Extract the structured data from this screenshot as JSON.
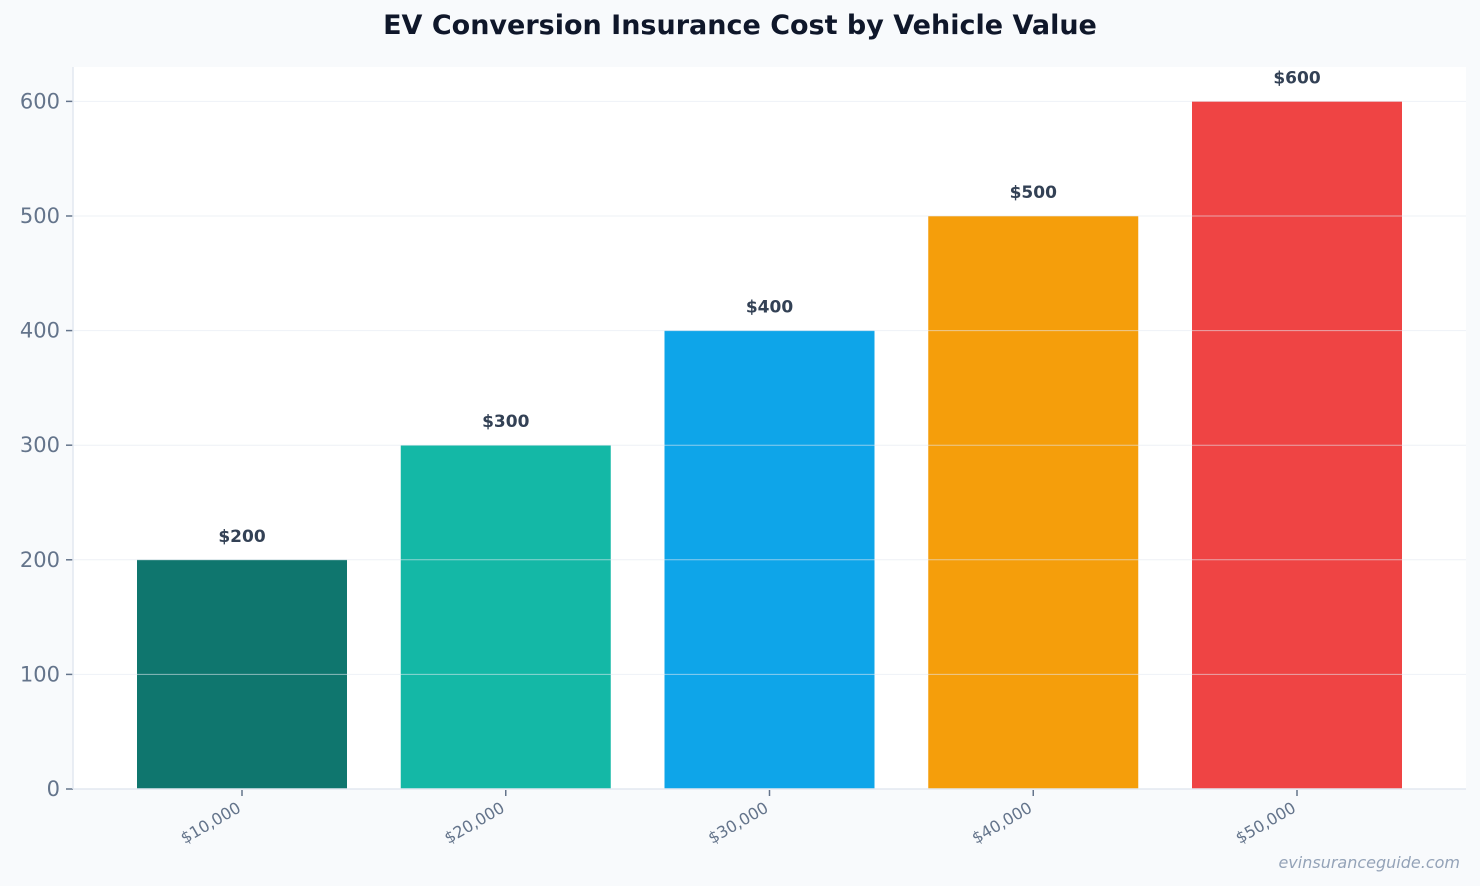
{
  "chart_data": {
    "type": "bar",
    "title": "EV Conversion Insurance Cost by Vehicle Value",
    "xlabel": "",
    "ylabel": "",
    "categories": [
      "$10,000",
      "$20,000",
      "$30,000",
      "$40,000",
      "$50,000"
    ],
    "values": [
      200,
      300,
      400,
      500,
      600
    ],
    "data_labels": [
      "$200",
      "$300",
      "$400",
      "$500",
      "$600"
    ],
    "colors": [
      "#0f766e",
      "#14b8a6",
      "#0ea5e9",
      "#f59e0b",
      "#ef4444"
    ],
    "ylim": [
      0,
      630
    ],
    "yticks": [
      0,
      100,
      200,
      300,
      400,
      500,
      600
    ],
    "grid": true,
    "legend": "none"
  },
  "watermark": "evinsuranceguide.com"
}
